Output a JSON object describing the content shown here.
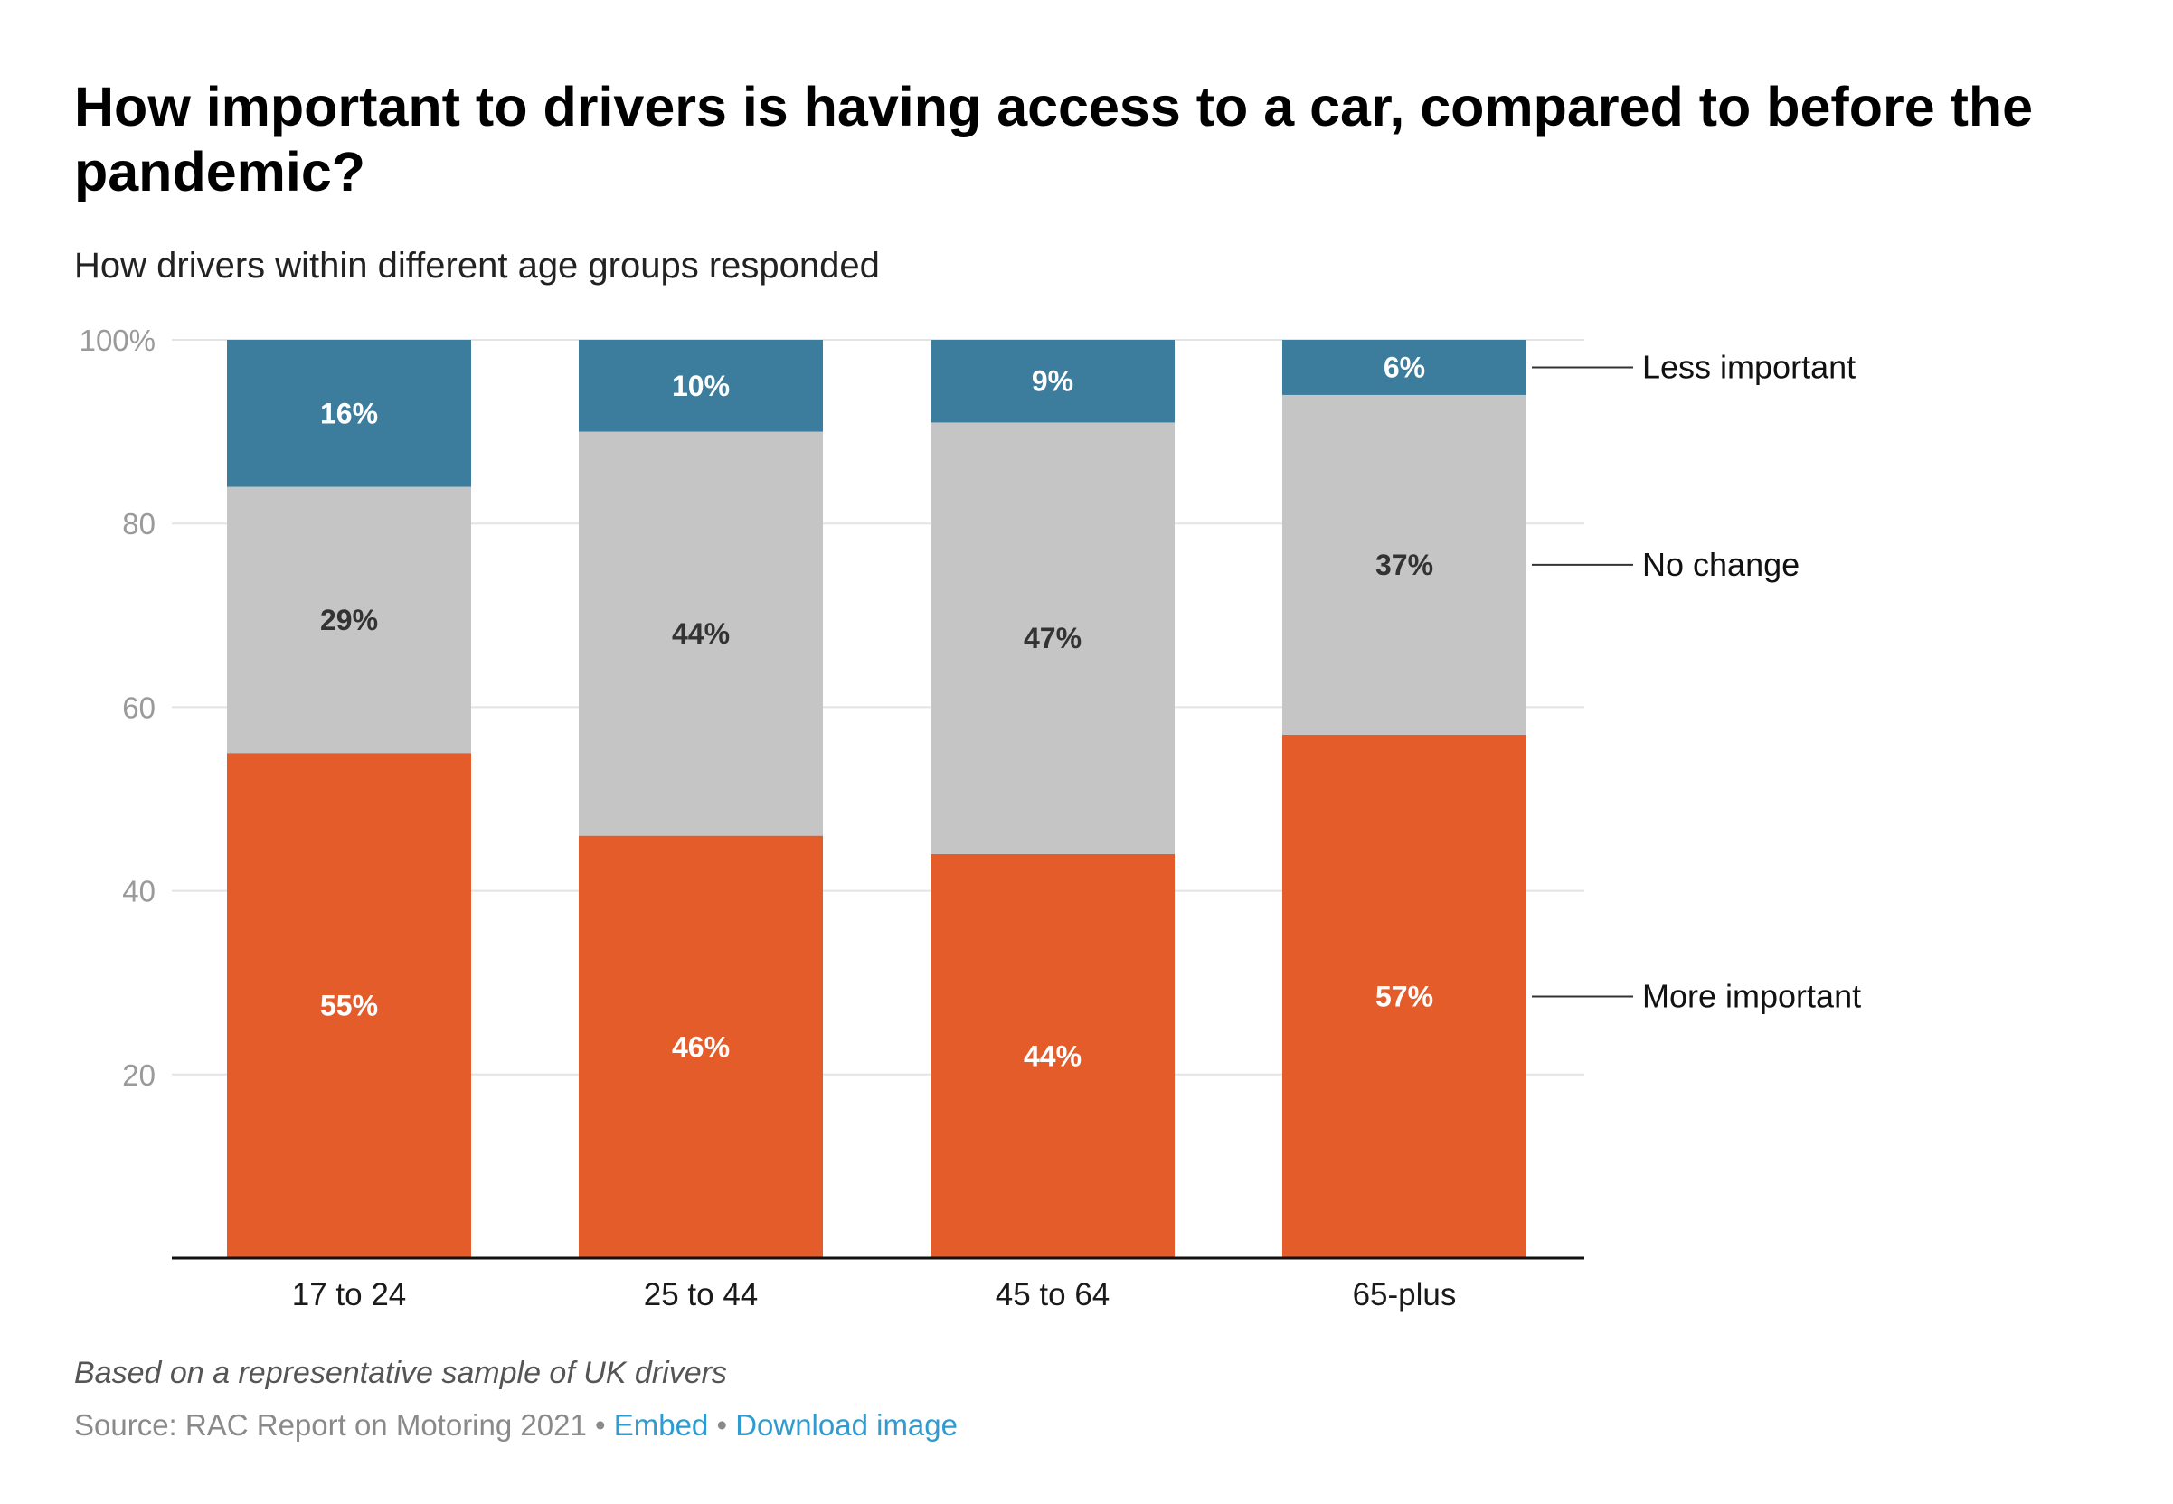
{
  "title": "How important to drivers is having access to a car, compared to before the pandemic?",
  "subtitle": "How drivers within different age groups responded",
  "footer": {
    "note": "Based on a representative sample of UK drivers",
    "source": "Source: RAC Report on Motoring 2021",
    "separator": "•",
    "embed_label": "Embed",
    "download_label": "Download image"
  },
  "chart_data": {
    "type": "bar",
    "stacked": true,
    "categories": [
      "17 to 24",
      "25 to 44",
      "45 to 64",
      "65-plus"
    ],
    "series": [
      {
        "name": "More important",
        "values": [
          55,
          46,
          44,
          57
        ],
        "labels": [
          "55%",
          "46%",
          "44%",
          "57%"
        ],
        "color": "#e55c2b",
        "label_color": "#ffffff"
      },
      {
        "name": "No change",
        "values": [
          29,
          44,
          47,
          37
        ],
        "labels": [
          "29%",
          "44%",
          "47%",
          "37%"
        ],
        "color": "#c5c5c5",
        "label_color": "#333333"
      },
      {
        "name": "Less important",
        "values": [
          16,
          10,
          9,
          6
        ],
        "labels": [
          "16%",
          "10%",
          "9%",
          "6%"
        ],
        "color": "#3c7d9d",
        "label_color": "#ffffff"
      }
    ],
    "yticks": [
      {
        "value": 100,
        "label": "100%"
      },
      {
        "value": 80,
        "label": "80"
      },
      {
        "value": 60,
        "label": "60"
      },
      {
        "value": 40,
        "label": "40"
      },
      {
        "value": 20,
        "label": "20"
      }
    ],
    "ylim": [
      0,
      100
    ],
    "grid": true,
    "legend": "right, direct labels"
  }
}
